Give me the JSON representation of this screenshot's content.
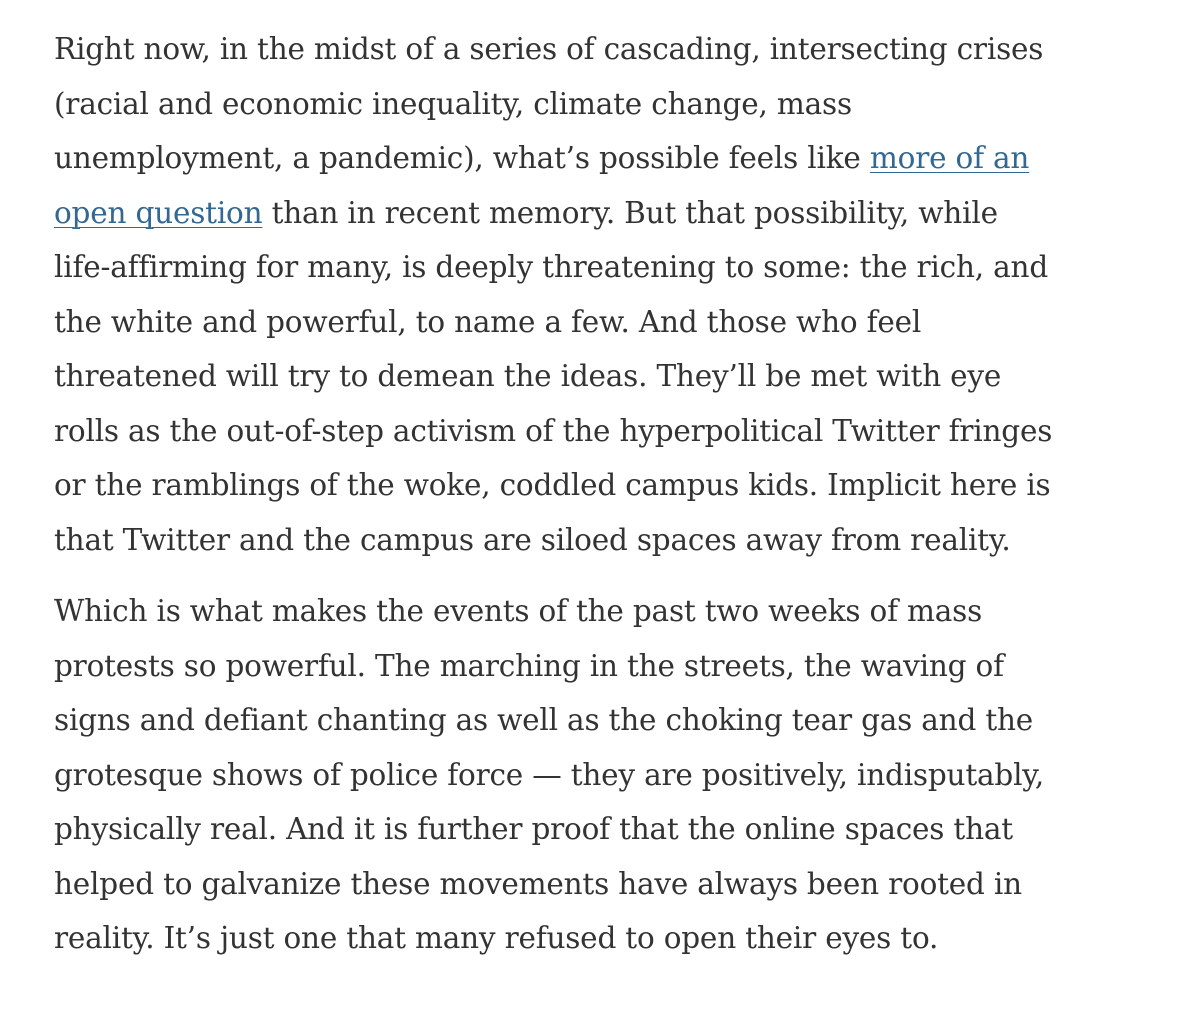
{
  "article": {
    "paragraph1": {
      "line1": "Right now, in the midst of a series of cascading, intersecting crises",
      "line2": "(racial and economic inequality, climate change, mass",
      "line3_text": "unemployment, a pandemic), what’s possible feels like ",
      "line3_link": "more of an",
      "line4_link": "open question",
      "line4_text": " than in recent memory. But that possibility, while",
      "line5": "life-affirming for many, is deeply threatening to some: the rich, and",
      "line6": "the white and powerful, to name a few. And those who feel",
      "line7": "threatened will try to demean the ideas. They’ll be met with eye",
      "line8": "rolls as the out-of-step activism of the hyperpolitical Twitter fringes",
      "line9": "or the ramblings of the woke, coddled campus kids. Implicit here is",
      "line10": "that Twitter and the campus are siloed spaces away from reality."
    },
    "paragraph2": {
      "line1": "Which is what makes the events of the past two weeks of mass",
      "line2": "protests so powerful. The marching in the streets, the waving of",
      "line3": "signs and defiant chanting as well as the choking tear gas and the",
      "line4": "grotesque shows of police force — they are positively, indisputably,",
      "line5": "physically real. And it is further proof that the online spaces that",
      "line6": "helped to galvanize these movements have always been rooted in",
      "line7": "reality. It’s just one that many refused to open their eyes to."
    }
  },
  "colors": {
    "text": "#333333",
    "link": "#326891",
    "background": "#ffffff"
  }
}
